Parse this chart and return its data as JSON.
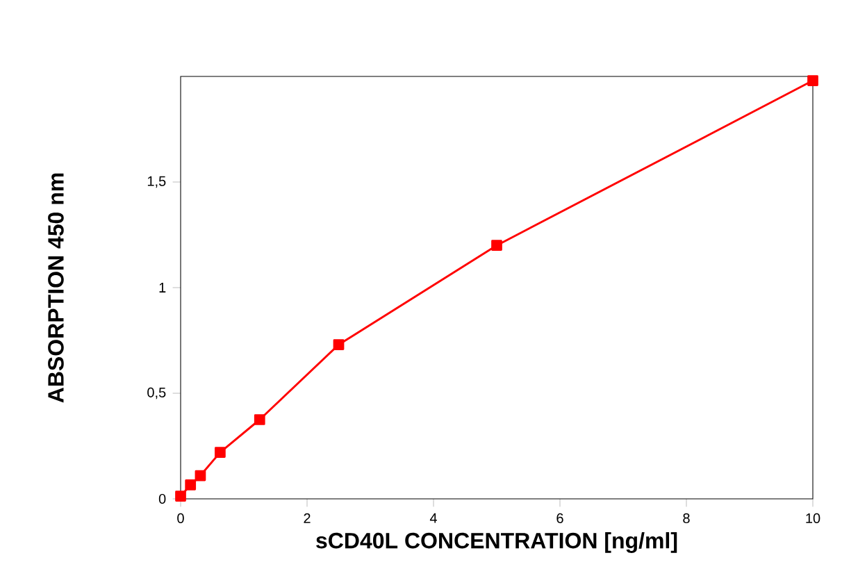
{
  "chart_data": {
    "type": "line",
    "x": [
      0,
      0.156,
      0.3125,
      0.625,
      1.25,
      2.5,
      5,
      10
    ],
    "values": [
      0.013,
      0.066,
      0.11,
      0.22,
      0.375,
      0.73,
      1.2,
      1.98
    ],
    "color": "#ff0000",
    "marker": "square",
    "line_style": "solid",
    "xlabel": "sCD40L CONCENTRATION [ng/ml]",
    "ylabel": "ABSORPTION 450 nm",
    "xlim": [
      0,
      10
    ],
    "xticks": [
      0,
      2,
      4,
      6,
      8,
      10
    ],
    "ylim": [
      0,
      2
    ],
    "yticks": [
      0,
      {
        "value": 0.5,
        "label": "0,5"
      },
      1,
      {
        "value": 1.5,
        "label": "1,5"
      }
    ],
    "grid": false
  }
}
